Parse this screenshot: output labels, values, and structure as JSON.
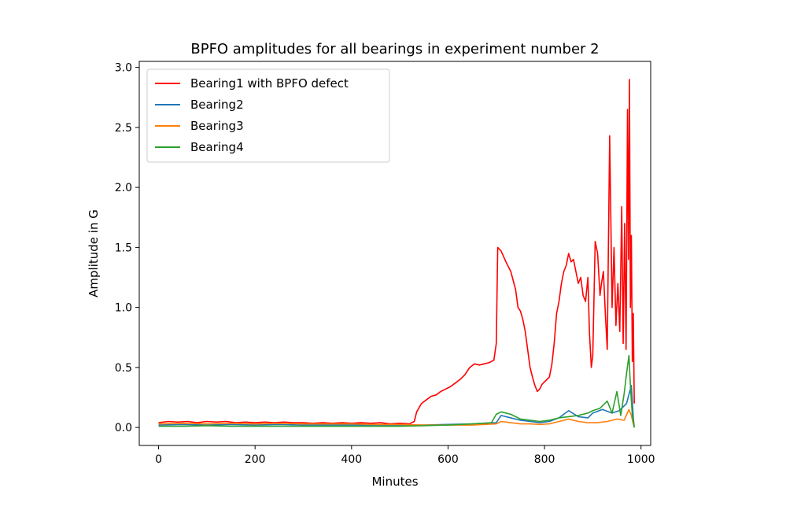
{
  "chart_data": {
    "type": "line",
    "title": "BPFO amplitudes for all bearings in experiment number 2",
    "xlabel": "Minutes",
    "ylabel": "Amplitude in G",
    "xlim": [
      -40,
      1020
    ],
    "ylim": [
      -0.15,
      3.05
    ],
    "xticks": [
      0,
      200,
      400,
      600,
      800,
      1000
    ],
    "xtick_labels": [
      "0",
      "200",
      "400",
      "600",
      "800",
      "1000"
    ],
    "yticks": [
      0.0,
      0.5,
      1.0,
      1.5,
      2.0,
      2.5,
      3.0
    ],
    "ytick_labels": [
      "0.0",
      "0.5",
      "1.0",
      "1.5",
      "2.0",
      "2.5",
      "3.0"
    ],
    "grid": false,
    "legend_position": "top-left",
    "series": [
      {
        "name": "Bearing1 with BPFO defect",
        "color": "#ff0000",
        "points": [
          [
            0,
            0.04
          ],
          [
            20,
            0.05
          ],
          [
            40,
            0.045
          ],
          [
            60,
            0.05
          ],
          [
            80,
            0.04
          ],
          [
            100,
            0.05
          ],
          [
            120,
            0.045
          ],
          [
            140,
            0.05
          ],
          [
            160,
            0.04
          ],
          [
            180,
            0.045
          ],
          [
            200,
            0.04
          ],
          [
            220,
            0.045
          ],
          [
            240,
            0.04
          ],
          [
            260,
            0.045
          ],
          [
            280,
            0.04
          ],
          [
            300,
            0.04
          ],
          [
            320,
            0.035
          ],
          [
            340,
            0.04
          ],
          [
            360,
            0.035
          ],
          [
            380,
            0.04
          ],
          [
            400,
            0.035
          ],
          [
            420,
            0.04
          ],
          [
            440,
            0.035
          ],
          [
            460,
            0.04
          ],
          [
            480,
            0.03
          ],
          [
            500,
            0.035
          ],
          [
            520,
            0.03
          ],
          [
            530,
            0.05
          ],
          [
            535,
            0.13
          ],
          [
            545,
            0.2
          ],
          [
            555,
            0.23
          ],
          [
            565,
            0.26
          ],
          [
            575,
            0.27
          ],
          [
            585,
            0.3
          ],
          [
            595,
            0.32
          ],
          [
            605,
            0.34
          ],
          [
            615,
            0.37
          ],
          [
            625,
            0.4
          ],
          [
            635,
            0.44
          ],
          [
            645,
            0.5
          ],
          [
            655,
            0.53
          ],
          [
            665,
            0.52
          ],
          [
            675,
            0.53
          ],
          [
            685,
            0.54
          ],
          [
            695,
            0.56
          ],
          [
            700,
            0.7
          ],
          [
            703,
            1.5
          ],
          [
            710,
            1.47
          ],
          [
            720,
            1.38
          ],
          [
            730,
            1.3
          ],
          [
            740,
            1.15
          ],
          [
            745,
            1.0
          ],
          [
            750,
            0.97
          ],
          [
            755,
            0.9
          ],
          [
            760,
            0.8
          ],
          [
            765,
            0.65
          ],
          [
            770,
            0.5
          ],
          [
            775,
            0.42
          ],
          [
            780,
            0.35
          ],
          [
            785,
            0.3
          ],
          [
            790,
            0.32
          ],
          [
            795,
            0.36
          ],
          [
            800,
            0.38
          ],
          [
            805,
            0.4
          ],
          [
            810,
            0.42
          ],
          [
            815,
            0.52
          ],
          [
            820,
            0.7
          ],
          [
            825,
            0.95
          ],
          [
            830,
            1.05
          ],
          [
            835,
            1.2
          ],
          [
            840,
            1.3
          ],
          [
            845,
            1.35
          ],
          [
            850,
            1.45
          ],
          [
            855,
            1.38
          ],
          [
            860,
            1.4
          ],
          [
            865,
            1.3
          ],
          [
            870,
            1.2
          ],
          [
            875,
            1.25
          ],
          [
            880,
            1.1
          ],
          [
            885,
            1.05
          ],
          [
            890,
            1.25
          ],
          [
            893,
            0.8
          ],
          [
            897,
            0.5
          ],
          [
            900,
            0.6
          ],
          [
            905,
            1.55
          ],
          [
            910,
            1.45
          ],
          [
            915,
            1.1
          ],
          [
            918,
            1.2
          ],
          [
            922,
            1.3
          ],
          [
            926,
            0.95
          ],
          [
            930,
            0.65
          ],
          [
            935,
            2.43
          ],
          [
            940,
            1.0
          ],
          [
            944,
            1.5
          ],
          [
            948,
            0.85
          ],
          [
            952,
            1.2
          ],
          [
            956,
            0.8
          ],
          [
            960,
            1.84
          ],
          [
            963,
            0.7
          ],
          [
            966,
            1.7
          ],
          [
            969,
            0.65
          ],
          [
            972,
            2.65
          ],
          [
            974,
            1.4
          ],
          [
            976,
            2.9
          ],
          [
            978,
            1.0
          ],
          [
            980,
            1.6
          ],
          [
            982,
            0.55
          ],
          [
            984,
            0.95
          ],
          [
            986,
            0.2
          ]
        ]
      },
      {
        "name": "Bearing2",
        "color": "#1f77b4",
        "points": [
          [
            0,
            0.02
          ],
          [
            50,
            0.025
          ],
          [
            100,
            0.02
          ],
          [
            150,
            0.025
          ],
          [
            200,
            0.02
          ],
          [
            250,
            0.025
          ],
          [
            300,
            0.02
          ],
          [
            350,
            0.02
          ],
          [
            400,
            0.02
          ],
          [
            450,
            0.02
          ],
          [
            500,
            0.02
          ],
          [
            550,
            0.02
          ],
          [
            600,
            0.025
          ],
          [
            650,
            0.03
          ],
          [
            700,
            0.04
          ],
          [
            710,
            0.1
          ],
          [
            730,
            0.08
          ],
          [
            750,
            0.06
          ],
          [
            770,
            0.05
          ],
          [
            790,
            0.04
          ],
          [
            810,
            0.05
          ],
          [
            830,
            0.08
          ],
          [
            850,
            0.14
          ],
          [
            870,
            0.09
          ],
          [
            890,
            0.08
          ],
          [
            900,
            0.12
          ],
          [
            920,
            0.15
          ],
          [
            940,
            0.12
          ],
          [
            955,
            0.14
          ],
          [
            970,
            0.2
          ],
          [
            980,
            0.35
          ],
          [
            984,
            0.08
          ],
          [
            986,
            0.0
          ]
        ]
      },
      {
        "name": "Bearing3",
        "color": "#ff7f0e",
        "points": [
          [
            0,
            0.03
          ],
          [
            50,
            0.035
          ],
          [
            100,
            0.03
          ],
          [
            150,
            0.035
          ],
          [
            200,
            0.03
          ],
          [
            250,
            0.035
          ],
          [
            300,
            0.03
          ],
          [
            350,
            0.03
          ],
          [
            400,
            0.03
          ],
          [
            450,
            0.025
          ],
          [
            500,
            0.025
          ],
          [
            550,
            0.02
          ],
          [
            600,
            0.02
          ],
          [
            650,
            0.02
          ],
          [
            700,
            0.03
          ],
          [
            710,
            0.05
          ],
          [
            730,
            0.04
          ],
          [
            750,
            0.03
          ],
          [
            770,
            0.03
          ],
          [
            790,
            0.025
          ],
          [
            810,
            0.03
          ],
          [
            830,
            0.05
          ],
          [
            850,
            0.07
          ],
          [
            870,
            0.05
          ],
          [
            890,
            0.04
          ],
          [
            910,
            0.04
          ],
          [
            930,
            0.05
          ],
          [
            950,
            0.07
          ],
          [
            965,
            0.06
          ],
          [
            975,
            0.15
          ],
          [
            980,
            0.1
          ],
          [
            984,
            0.03
          ],
          [
            986,
            0.0
          ]
        ]
      },
      {
        "name": "Bearing4",
        "color": "#2ca02c",
        "points": [
          [
            0,
            0.01
          ],
          [
            50,
            0.01
          ],
          [
            100,
            0.015
          ],
          [
            150,
            0.01
          ],
          [
            200,
            0.01
          ],
          [
            250,
            0.01
          ],
          [
            300,
            0.01
          ],
          [
            350,
            0.01
          ],
          [
            400,
            0.01
          ],
          [
            450,
            0.01
          ],
          [
            500,
            0.01
          ],
          [
            550,
            0.015
          ],
          [
            600,
            0.02
          ],
          [
            650,
            0.03
          ],
          [
            690,
            0.04
          ],
          [
            700,
            0.11
          ],
          [
            710,
            0.13
          ],
          [
            720,
            0.12
          ],
          [
            730,
            0.11
          ],
          [
            740,
            0.09
          ],
          [
            750,
            0.07
          ],
          [
            770,
            0.06
          ],
          [
            790,
            0.05
          ],
          [
            810,
            0.06
          ],
          [
            830,
            0.08
          ],
          [
            850,
            0.09
          ],
          [
            870,
            0.1
          ],
          [
            890,
            0.12
          ],
          [
            900,
            0.14
          ],
          [
            915,
            0.16
          ],
          [
            930,
            0.22
          ],
          [
            940,
            0.12
          ],
          [
            950,
            0.3
          ],
          [
            958,
            0.1
          ],
          [
            965,
            0.28
          ],
          [
            970,
            0.45
          ],
          [
            975,
            0.6
          ],
          [
            978,
            0.35
          ],
          [
            982,
            0.1
          ],
          [
            986,
            0.0
          ]
        ]
      }
    ]
  }
}
